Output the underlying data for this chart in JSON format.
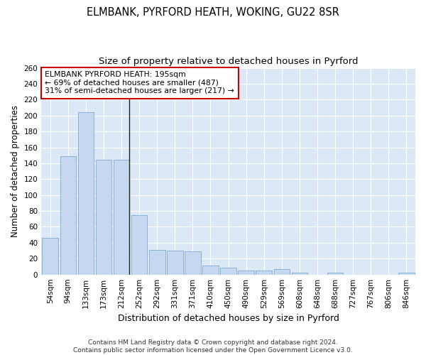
{
  "title": "ELMBANK, PYRFORD HEATH, WOKING, GU22 8SR",
  "subtitle": "Size of property relative to detached houses in Pyrford",
  "xlabel": "Distribution of detached houses by size in Pyrford",
  "ylabel": "Number of detached properties",
  "categories": [
    "54sqm",
    "94sqm",
    "133sqm",
    "173sqm",
    "212sqm",
    "252sqm",
    "292sqm",
    "331sqm",
    "371sqm",
    "410sqm",
    "450sqm",
    "490sqm",
    "529sqm",
    "569sqm",
    "608sqm",
    "648sqm",
    "688sqm",
    "727sqm",
    "767sqm",
    "806sqm",
    "846sqm"
  ],
  "values": [
    46,
    149,
    204,
    144,
    144,
    75,
    31,
    30,
    29,
    11,
    9,
    5,
    5,
    7,
    2,
    0,
    2,
    0,
    0,
    0,
    2
  ],
  "bar_color": "#c5d8f0",
  "bar_edge_color": "#7aadd4",
  "highlight_index": 4,
  "highlight_line_color": "#222222",
  "annotation_text": "ELMBANK PYRFORD HEATH: 195sqm\n← 69% of detached houses are smaller (487)\n31% of semi-detached houses are larger (217) →",
  "annotation_box_facecolor": "#ffffff",
  "annotation_box_edgecolor": "#cc0000",
  "ylim": [
    0,
    260
  ],
  "yticks": [
    0,
    20,
    40,
    60,
    80,
    100,
    120,
    140,
    160,
    180,
    200,
    220,
    240,
    260
  ],
  "footer": "Contains HM Land Registry data © Crown copyright and database right 2024.\nContains public sector information licensed under the Open Government Licence v3.0.",
  "fig_bg_color": "#ffffff",
  "plot_bg_color": "#dce8f5",
  "grid_color": "#ffffff",
  "title_fontsize": 10.5,
  "subtitle_fontsize": 9.5,
  "tick_fontsize": 7.5,
  "xlabel_fontsize": 9,
  "ylabel_fontsize": 8.5,
  "footer_fontsize": 6.5,
  "annotation_fontsize": 7.8
}
